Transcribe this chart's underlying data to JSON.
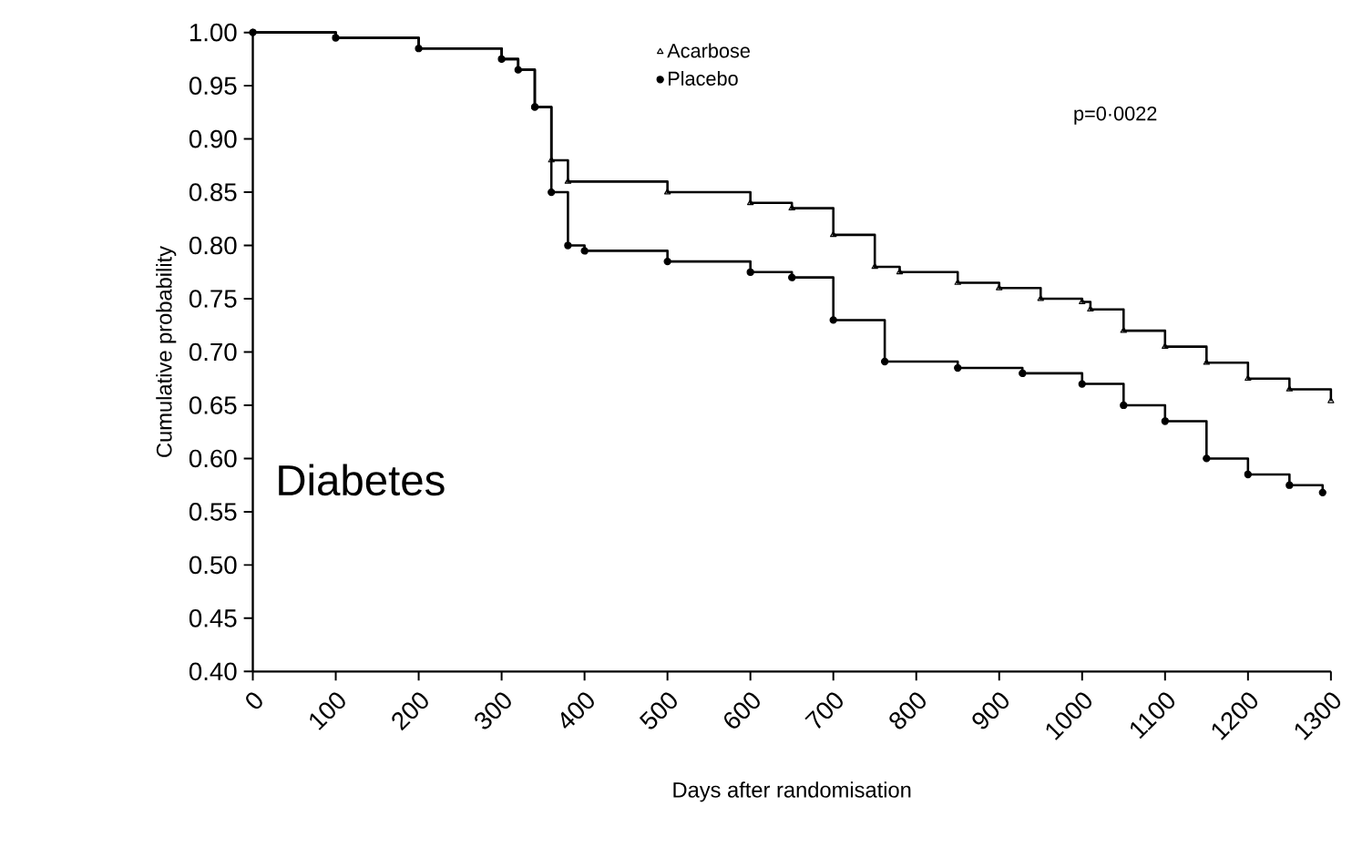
{
  "chart_data": {
    "type": "step",
    "xlabel": "Days after randomisation",
    "ylabel": "Cumulative probability",
    "annotations": [
      "p=0·0022",
      "Diabetes"
    ],
    "xlim": [
      0,
      1300
    ],
    "xticks": [
      0,
      100,
      200,
      300,
      400,
      500,
      600,
      700,
      800,
      900,
      1000,
      1100,
      1200,
      1300
    ],
    "ylim": [
      0.4,
      1.0
    ],
    "yticks": [
      {
        "value": 0.4,
        "label": "0.40"
      },
      {
        "value": 0.45,
        "label": "0.45"
      },
      {
        "value": 0.5,
        "label": "0.50"
      },
      {
        "value": 0.55,
        "label": "0.55"
      },
      {
        "value": 0.6,
        "label": "0.60"
      },
      {
        "value": 0.65,
        "label": "0.65"
      },
      {
        "value": 0.7,
        "label": "0.70"
      },
      {
        "value": 0.75,
        "label": "0.75"
      },
      {
        "value": 0.8,
        "label": "0.80"
      },
      {
        "value": 0.85,
        "label": "0.85"
      },
      {
        "value": 0.9,
        "label": "0.90"
      },
      {
        "value": 0.95,
        "label": "0.95"
      },
      {
        "value": 1.0,
        "label": "1.00"
      }
    ],
    "grid": false,
    "legend": "top",
    "series": [
      {
        "name": "Acarbose",
        "color": "#000000",
        "marker": "triangle",
        "x": [
          0,
          100,
          200,
          300,
          320,
          340,
          360,
          380,
          500,
          600,
          650,
          700,
          750,
          780,
          850,
          900,
          950,
          1000,
          1010,
          1050,
          1100,
          1150,
          1200,
          1250,
          1300
        ],
        "values": [
          1.0,
          0.995,
          0.985,
          0.975,
          0.965,
          0.93,
          0.88,
          0.86,
          0.85,
          0.84,
          0.835,
          0.81,
          0.78,
          0.775,
          0.765,
          0.76,
          0.75,
          0.747,
          0.74,
          0.72,
          0.705,
          0.69,
          0.675,
          0.665,
          0.654
        ]
      },
      {
        "name": "Placebo",
        "color": "#000000",
        "marker": "circle",
        "x": [
          0,
          100,
          200,
          300,
          320,
          340,
          360,
          380,
          400,
          500,
          600,
          650,
          700,
          762,
          850,
          928,
          1000,
          1050,
          1100,
          1150,
          1200,
          1250,
          1290
        ],
        "values": [
          1.0,
          0.995,
          0.985,
          0.975,
          0.965,
          0.93,
          0.85,
          0.8,
          0.795,
          0.785,
          0.775,
          0.77,
          0.73,
          0.691,
          0.685,
          0.68,
          0.67,
          0.65,
          0.635,
          0.6,
          0.585,
          0.575,
          0.568
        ]
      }
    ]
  }
}
